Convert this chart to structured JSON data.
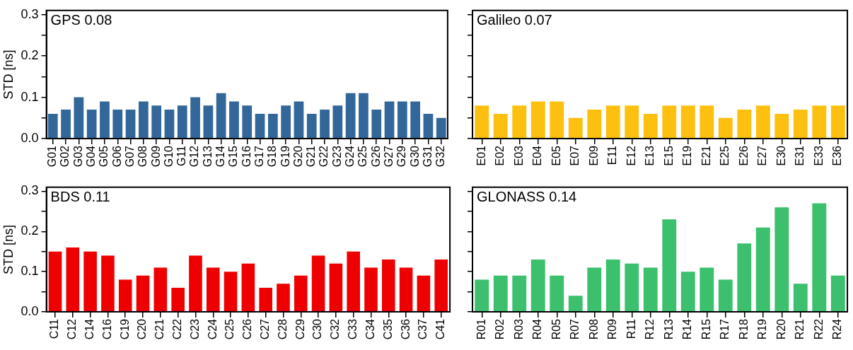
{
  "chart_data": [
    {
      "type": "bar",
      "title": "GPS 0.08",
      "ylabel": "STD [ns]",
      "categories": [
        "G01",
        "G02",
        "G03",
        "G04",
        "G05",
        "G06",
        "G07",
        "G08",
        "G09",
        "G10",
        "G11",
        "G12",
        "G13",
        "G14",
        "G15",
        "G16",
        "G17",
        "G18",
        "G19",
        "G20",
        "G21",
        "G22",
        "G23",
        "G24",
        "G25",
        "G26",
        "G27",
        "G29",
        "G30",
        "G31",
        "G32"
      ],
      "values": [
        0.06,
        0.07,
        0.1,
        0.07,
        0.09,
        0.07,
        0.07,
        0.09,
        0.08,
        0.07,
        0.08,
        0.1,
        0.08,
        0.11,
        0.09,
        0.08,
        0.06,
        0.06,
        0.08,
        0.09,
        0.06,
        0.07,
        0.08,
        0.11,
        0.11,
        0.07,
        0.09,
        0.09,
        0.09,
        0.06,
        0.05
      ],
      "color": "#336699",
      "ylim": [
        0,
        0.31
      ],
      "yticks": [
        {
          "value": 0,
          "label": "0.0"
        },
        {
          "value": 0.05,
          "label": null
        },
        0.1,
        {
          "value": 0.15,
          "label": null
        },
        0.2,
        {
          "value": 0.25,
          "label": null
        },
        0.3
      ],
      "grid": false
    },
    {
      "type": "bar",
      "title": "Galileo 0.07",
      "categories": [
        "E01",
        "E02",
        "E03",
        "E04",
        "E05",
        "E07",
        "E09",
        "E11",
        "E12",
        "E13",
        "E15",
        "E19",
        "E21",
        "E25",
        "E26",
        "E27",
        "E30",
        "E31",
        "E33",
        "E36"
      ],
      "values": [
        0.08,
        0.06,
        0.08,
        0.09,
        0.09,
        0.05,
        0.07,
        0.08,
        0.08,
        0.06,
        0.08,
        0.08,
        0.08,
        0.05,
        0.07,
        0.08,
        0.06,
        0.07,
        0.08,
        0.08
      ],
      "color": "#fdc010",
      "ylim": [
        0,
        0.31
      ],
      "yticks": [
        0,
        0.05,
        0.1,
        0.15,
        0.2,
        0.25,
        0.3
      ],
      "tick_labels": "x",
      "grid": false
    },
    {
      "type": "bar",
      "title": "BDS 0.11",
      "ylabel": "STD [ns]",
      "categories": [
        "C11",
        "C12",
        "C14",
        "C16",
        "C19",
        "C20",
        "C21",
        "C22",
        "C23",
        "C24",
        "C25",
        "C26",
        "C27",
        "C28",
        "C29",
        "C30",
        "C32",
        "C33",
        "C34",
        "C35",
        "C36",
        "C37",
        "C41"
      ],
      "values": [
        0.15,
        0.16,
        0.15,
        0.14,
        0.08,
        0.09,
        0.11,
        0.06,
        0.14,
        0.11,
        0.1,
        0.12,
        0.06,
        0.07,
        0.09,
        0.14,
        0.12,
        0.15,
        0.11,
        0.13,
        0.11,
        0.09,
        0.13
      ],
      "color": "#ee0000",
      "ylim": [
        0,
        0.31
      ],
      "yticks": [
        {
          "value": 0,
          "label": "0.0"
        },
        {
          "value": 0.05,
          "label": null
        },
        0.1,
        {
          "value": 0.15,
          "label": null
        },
        0.2,
        {
          "value": 0.25,
          "label": null
        },
        0.3
      ],
      "grid": false
    },
    {
      "type": "bar",
      "title": "GLONASS 0.14",
      "categories": [
        "R01",
        "R02",
        "R03",
        "R04",
        "R05",
        "R07",
        "R08",
        "R09",
        "R11",
        "R12",
        "R13",
        "R14",
        "R15",
        "R17",
        "R18",
        "R19",
        "R20",
        "R21",
        "R22",
        "R24"
      ],
      "values": [
        0.08,
        0.09,
        0.09,
        0.13,
        0.09,
        0.04,
        0.11,
        0.13,
        0.12,
        0.11,
        0.23,
        0.1,
        0.11,
        0.08,
        0.17,
        0.21,
        0.26,
        0.07,
        0.27,
        0.09
      ],
      "color": "#3cc06e",
      "ylim": [
        0,
        0.31
      ],
      "yticks": [
        0,
        0.05,
        0.1,
        0.15,
        0.2,
        0.25,
        0.3
      ],
      "tick_labels": "x",
      "grid": false
    }
  ]
}
